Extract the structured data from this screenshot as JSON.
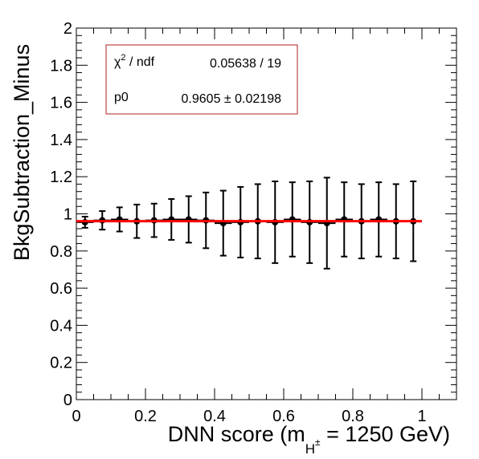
{
  "chart_data": {
    "type": "scatter",
    "xlabel": "DNN score (m",
    "xlabel_sub": "H",
    "xlabel_sup": "±",
    "xlabel_rest": " = 1250 GeV)",
    "ylabel": "BkgSubtraction_Minus",
    "xlim": [
      0,
      1.1
    ],
    "ylim": [
      0,
      2
    ],
    "x_ticks": [
      "0",
      "0.2",
      "0.4",
      "0.6",
      "0.8",
      "1"
    ],
    "y_ticks": [
      "0",
      "0.2",
      "0.4",
      "0.6",
      "0.8",
      "1",
      "1.2",
      "1.4",
      "1.6",
      "1.8",
      "2"
    ],
    "points": [
      {
        "x": 0.025,
        "xerr": 0.025,
        "y": 0.955,
        "yerr": 0.03
      },
      {
        "x": 0.075,
        "xerr": 0.025,
        "y": 0.965,
        "yerr": 0.05
      },
      {
        "x": 0.125,
        "xerr": 0.025,
        "y": 0.97,
        "yerr": 0.065
      },
      {
        "x": 0.175,
        "xerr": 0.025,
        "y": 0.96,
        "yerr": 0.09
      },
      {
        "x": 0.225,
        "xerr": 0.025,
        "y": 0.965,
        "yerr": 0.09
      },
      {
        "x": 0.275,
        "xerr": 0.025,
        "y": 0.97,
        "yerr": 0.11
      },
      {
        "x": 0.325,
        "xerr": 0.025,
        "y": 0.97,
        "yerr": 0.125
      },
      {
        "x": 0.375,
        "xerr": 0.025,
        "y": 0.965,
        "yerr": 0.15
      },
      {
        "x": 0.425,
        "xerr": 0.025,
        "y": 0.95,
        "yerr": 0.175
      },
      {
        "x": 0.475,
        "xerr": 0.025,
        "y": 0.955,
        "yerr": 0.19
      },
      {
        "x": 0.525,
        "xerr": 0.025,
        "y": 0.96,
        "yerr": 0.2
      },
      {
        "x": 0.575,
        "xerr": 0.025,
        "y": 0.955,
        "yerr": 0.22
      },
      {
        "x": 0.625,
        "xerr": 0.025,
        "y": 0.97,
        "yerr": 0.2
      },
      {
        "x": 0.675,
        "xerr": 0.025,
        "y": 0.955,
        "yerr": 0.22
      },
      {
        "x": 0.725,
        "xerr": 0.025,
        "y": 0.95,
        "yerr": 0.245
      },
      {
        "x": 0.775,
        "xerr": 0.025,
        "y": 0.97,
        "yerr": 0.2
      },
      {
        "x": 0.825,
        "xerr": 0.025,
        "y": 0.96,
        "yerr": 0.2
      },
      {
        "x": 0.875,
        "xerr": 0.025,
        "y": 0.97,
        "yerr": 0.2
      },
      {
        "x": 0.925,
        "xerr": 0.025,
        "y": 0.96,
        "yerr": 0.2
      },
      {
        "x": 0.975,
        "xerr": 0.025,
        "y": 0.96,
        "yerr": 0.215
      }
    ],
    "fit": {
      "type": "constant",
      "value": 0.9605,
      "x_range": [
        0,
        1
      ],
      "color": "#ff0000"
    },
    "stats_box": {
      "chi2_label": "χ",
      "chi2_sup": "2",
      "chi2_label_rest": " / ndf",
      "chi2_value": "0.05638 / 19",
      "param_label": "p0",
      "param_value": "0.9605",
      "param_pm": "±",
      "param_error": "0.02198",
      "border_color": "#b22222"
    },
    "grid": false,
    "marker_color": "#000000"
  }
}
